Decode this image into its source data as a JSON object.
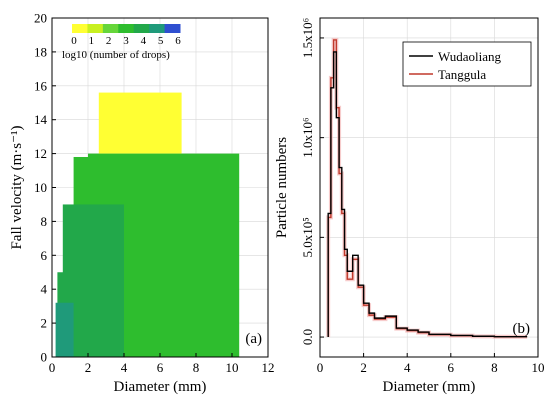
{
  "chart_data": [
    {
      "type": "heatmap",
      "panel_label": "(a)",
      "xlabel": "Diameter (mm)",
      "ylabel": "Fall velocity (m·s⁻¹)",
      "xlim": [
        0,
        12
      ],
      "ylim": [
        0,
        20
      ],
      "xticks": [
        "0",
        "2",
        "4",
        "6",
        "8",
        "10",
        "12"
      ],
      "yticks": [
        "0",
        "2",
        "4",
        "6",
        "8",
        "10",
        "12",
        "14",
        "16",
        "18",
        "20"
      ],
      "colorbar": {
        "label": "log10 (number of drops)",
        "ticks": [
          "0",
          "1",
          "2",
          "3",
          "4",
          "5",
          "6"
        ],
        "colors": [
          "#ffff33",
          "#c8f020",
          "#66d63a",
          "#2ebd2e",
          "#22a84a",
          "#1f9a7a",
          "#2f4fd0"
        ]
      },
      "cells": [
        {
          "x0": 0.4,
          "x1": 10.2,
          "y0": 0,
          "y1": 1,
          "v": 1.2
        },
        {
          "x0": 2.6,
          "x1": 7.2,
          "y0": 12,
          "y1": 15.6,
          "v": 0
        },
        {
          "x0": 2.0,
          "x1": 10.4,
          "y0": 0,
          "y1": 12,
          "v": 2.5
        },
        {
          "x0": 1.2,
          "x1": 6.0,
          "y0": 0,
          "y1": 11.8,
          "v": 3.3
        },
        {
          "x0": 0.6,
          "x1": 4.0,
          "y0": 0,
          "y1": 9.0,
          "v": 3.8
        },
        {
          "x0": 0.3,
          "x1": 2.2,
          "y0": 0,
          "y1": 5.0,
          "v": 4.4
        },
        {
          "x0": 0.2,
          "x1": 1.2,
          "y0": 0,
          "y1": 3.2,
          "v": 5.2
        }
      ],
      "annotations": [
        "(a)"
      ]
    },
    {
      "type": "line",
      "panel_label": "(b)",
      "xlabel": "Diameter (mm)",
      "ylabel": "Particle numbers",
      "xlim": [
        0,
        10
      ],
      "ylim": [
        -100000,
        1600000
      ],
      "xticks": [
        "0",
        "2",
        "4",
        "6",
        "8",
        "10"
      ],
      "yticks": [
        "0.0",
        "5.0x10⁵",
        "1.0x10⁶",
        "1.5x10⁶"
      ],
      "yticks_values": [
        0,
        500000,
        1000000,
        1500000
      ],
      "legend": "top-right",
      "series": [
        {
          "name": "Wudaoliang",
          "color": "#000000",
          "step_x": [
            0.375,
            0.5,
            0.625,
            0.75,
            0.875,
            1.0,
            1.125,
            1.25,
            1.5,
            1.75,
            2.0,
            2.25,
            2.5,
            3.0,
            3.5,
            4.0,
            4.5,
            5.0,
            6.0,
            7.0,
            8.0,
            9.5
          ],
          "values": [
            620000,
            1250000,
            1430000,
            1100000,
            850000,
            640000,
            440000,
            330000,
            410000,
            260000,
            170000,
            120000,
            95000,
            105000,
            45000,
            35000,
            25000,
            14000,
            8000,
            4000,
            2000
          ]
        },
        {
          "name": "Tanggula",
          "color": "#c0392b",
          "step_x": [
            0.375,
            0.5,
            0.625,
            0.75,
            0.875,
            1.0,
            1.125,
            1.25,
            1.5,
            1.75,
            2.0,
            2.25,
            2.5,
            3.0,
            3.5,
            4.0,
            4.5,
            5.0,
            6.0,
            7.0,
            8.0,
            9.5
          ],
          "values": [
            600000,
            1300000,
            1490000,
            1150000,
            820000,
            620000,
            410000,
            290000,
            390000,
            250000,
            160000,
            110000,
            90000,
            100000,
            42000,
            32000,
            22000,
            12000,
            7000,
            3500,
            1500
          ]
        }
      ],
      "annotations": [
        "(b)"
      ]
    }
  ]
}
